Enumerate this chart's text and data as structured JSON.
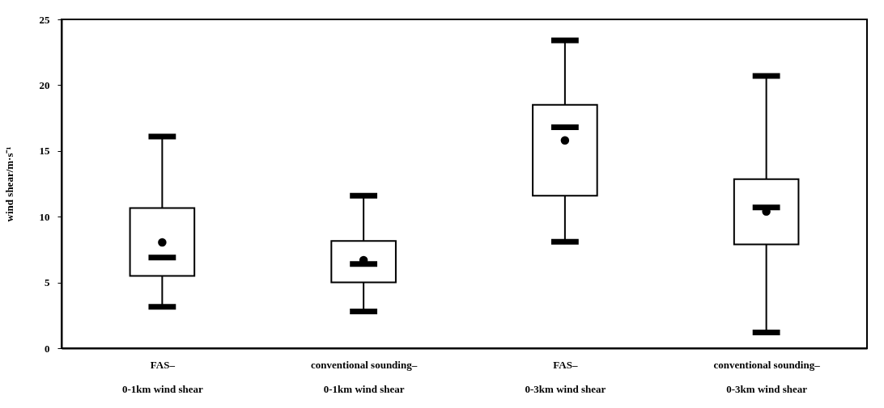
{
  "chart_data": {
    "type": "box",
    "ylabel": "wind shear/m·s⁻¹",
    "categories": [
      "FAS–\n0-1km wind shear",
      "conventional sounding–\n0-1km wind shear",
      "FAS–\n0-3km wind shear",
      "conventional sounding–\n0-3km wind shear"
    ],
    "boxes": [
      {
        "low": 3.15,
        "q1": 5.5,
        "median": 6.9,
        "q3": 10.65,
        "high": 16.1,
        "mean": 8.05
      },
      {
        "low": 2.8,
        "q1": 5.0,
        "median": 6.4,
        "q3": 8.15,
        "high": 11.6,
        "mean": 6.7
      },
      {
        "low": 8.1,
        "q1": 11.6,
        "median": 16.8,
        "q3": 18.5,
        "high": 23.4,
        "mean": 15.8
      },
      {
        "low": 1.2,
        "q1": 7.9,
        "median": 10.7,
        "q3": 12.85,
        "high": 20.7,
        "mean": 10.4
      }
    ],
    "color": "#000000",
    "ylim": [
      0,
      25
    ],
    "yticks": [
      0,
      5,
      10,
      15,
      20,
      25
    ]
  }
}
